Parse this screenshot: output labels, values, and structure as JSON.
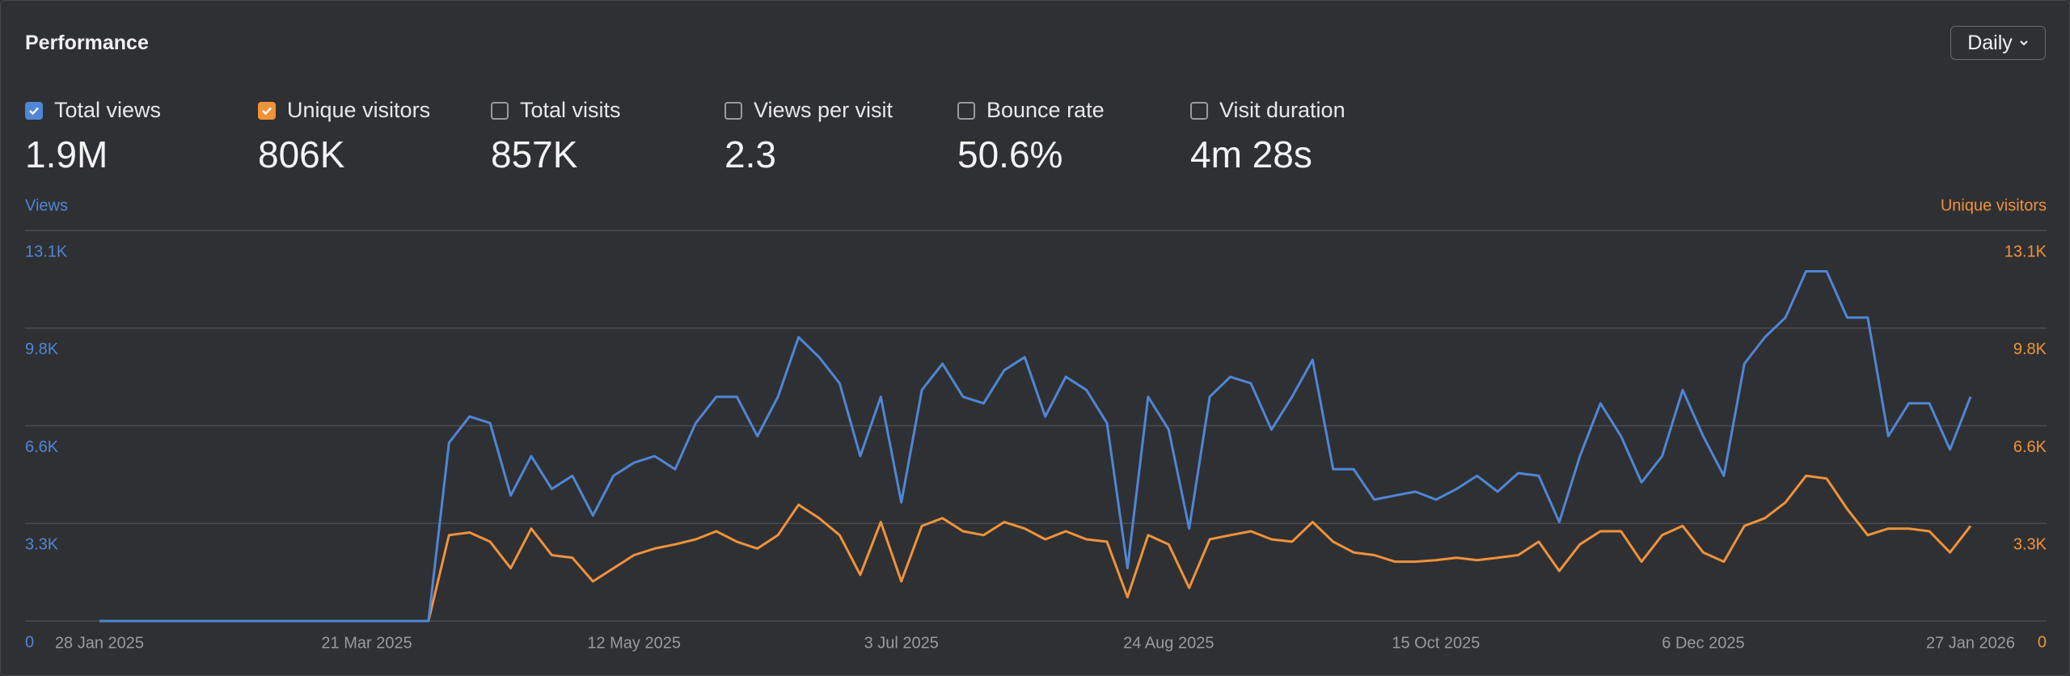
{
  "title": "Performance",
  "interval": "Daily",
  "metrics": [
    {
      "label": "Total views",
      "value": "1.9M",
      "checked": true,
      "color": "#4f86d6"
    },
    {
      "label": "Unique visitors",
      "value": "806K",
      "checked": true,
      "color": "#f0923a"
    },
    {
      "label": "Total visits",
      "value": "857K",
      "checked": false
    },
    {
      "label": "Views per visit",
      "value": "2.3",
      "checked": false
    },
    {
      "label": "Bounce rate",
      "value": "50.6%",
      "checked": false
    },
    {
      "label": "Visit duration",
      "value": "4m 28s",
      "checked": false
    }
  ],
  "chart_data": {
    "type": "line",
    "ylabel": "Views",
    "y2label": "Unique visitors",
    "x": [
      "2025-01-28",
      "2025-02-01",
      "2025-02-05",
      "2025-02-09",
      "2025-02-13",
      "2025-02-17",
      "2025-02-21",
      "2025-02-25",
      "2025-03-01",
      "2025-03-05",
      "2025-03-09",
      "2025-03-13",
      "2025-03-17",
      "2025-03-21",
      "2025-03-25",
      "2025-03-29",
      "2025-04-02",
      "2025-04-06",
      "2025-04-10",
      "2025-04-14",
      "2025-04-18",
      "2025-04-22",
      "2025-04-26",
      "2025-04-30",
      "2025-05-04",
      "2025-05-08",
      "2025-05-12",
      "2025-05-16",
      "2025-05-20",
      "2025-05-24",
      "2025-05-28",
      "2025-06-01",
      "2025-06-05",
      "2025-06-09",
      "2025-06-13",
      "2025-06-17",
      "2025-06-21",
      "2025-06-25",
      "2025-06-29",
      "2025-07-03",
      "2025-07-07",
      "2025-07-11",
      "2025-07-15",
      "2025-07-19",
      "2025-07-23",
      "2025-07-27",
      "2025-07-31",
      "2025-08-04",
      "2025-08-08",
      "2025-08-12",
      "2025-08-16",
      "2025-08-20",
      "2025-08-24",
      "2025-08-28",
      "2025-09-01",
      "2025-09-05",
      "2025-09-09",
      "2025-09-13",
      "2025-09-17",
      "2025-09-21",
      "2025-09-25",
      "2025-09-29",
      "2025-10-03",
      "2025-10-07",
      "2025-10-11",
      "2025-10-15",
      "2025-10-19",
      "2025-10-23",
      "2025-10-27",
      "2025-10-31",
      "2025-11-04",
      "2025-11-08",
      "2025-11-12",
      "2025-11-16",
      "2025-11-20",
      "2025-11-24",
      "2025-11-28",
      "2025-12-02",
      "2025-12-06",
      "2025-12-10",
      "2025-12-14",
      "2025-12-18",
      "2025-12-22",
      "2025-12-26",
      "2025-12-30",
      "2026-01-03",
      "2026-01-07",
      "2026-01-11",
      "2026-01-15",
      "2026-01-19",
      "2026-01-23",
      "2026-01-27"
    ],
    "series": [
      {
        "name": "Total views",
        "color": "#4f86d6",
        "values": [
          0,
          0,
          0,
          0,
          0,
          0,
          0,
          0,
          0,
          0,
          0,
          0,
          0,
          0,
          0,
          0,
          0,
          5980,
          6860,
          6640,
          4210,
          5530,
          4430,
          4870,
          3540,
          4870,
          5310,
          5530,
          5090,
          6640,
          7520,
          7520,
          6200,
          7520,
          9520,
          8850,
          7970,
          5530,
          7520,
          3980,
          7750,
          8630,
          7520,
          7300,
          8410,
          8850,
          6860,
          8190,
          7750,
          6640,
          1770,
          7520,
          6420,
          3100,
          7520,
          8190,
          7970,
          6420,
          7520,
          8760,
          5090,
          5090,
          4070,
          4210,
          4340,
          4070,
          4430,
          4870,
          4340,
          4960,
          4870,
          3320,
          5530,
          7300,
          6200,
          4650,
          5530,
          7750,
          6200,
          4870,
          8630,
          9520,
          10180,
          11730,
          11730,
          10180,
          10180,
          6200,
          7300,
          7300,
          5750,
          7520
        ]
      },
      {
        "name": "Unique visitors",
        "color": "#f0923a",
        "axis": "y2",
        "values": [
          0,
          0,
          0,
          0,
          0,
          0,
          0,
          0,
          0,
          0,
          0,
          0,
          0,
          0,
          0,
          0,
          0,
          2880,
          2970,
          2660,
          1770,
          3100,
          2210,
          2120,
          1330,
          1770,
          2210,
          2430,
          2570,
          2740,
          3010,
          2660,
          2430,
          2880,
          3900,
          3450,
          2880,
          1550,
          3320,
          1330,
          3190,
          3450,
          3010,
          2880,
          3320,
          3100,
          2740,
          3010,
          2740,
          2660,
          800,
          2880,
          2570,
          1110,
          2740,
          2880,
          3010,
          2740,
          2660,
          3320,
          2660,
          2300,
          2210,
          1990,
          1990,
          2040,
          2120,
          2040,
          2120,
          2210,
          2660,
          1680,
          2570,
          3010,
          3010,
          1990,
          2880,
          3190,
          2300,
          1990,
          3190,
          3450,
          3980,
          4870,
          4780,
          3760,
          2880,
          3100,
          3100,
          3010,
          2300,
          3190
        ]
      }
    ],
    "xticks": [
      {
        "value": "2025-01-28",
        "label": "28 Jan 2025"
      },
      {
        "value": "2025-03-21",
        "label": "21 Mar 2025"
      },
      {
        "value": "2025-05-12",
        "label": "12 May 2025"
      },
      {
        "value": "2025-07-03",
        "label": "3 Jul 2025"
      },
      {
        "value": "2025-08-24",
        "label": "24 Aug 2025"
      },
      {
        "value": "2025-10-15",
        "label": "15 Oct 2025"
      },
      {
        "value": "2025-12-06",
        "label": "6 Dec 2025"
      },
      {
        "value": "2026-01-27",
        "label": "27 Jan 2026"
      }
    ],
    "ylim": [
      0,
      13100
    ],
    "yticks": [
      0,
      {
        "value": 3275,
        "label": "3.3K"
      },
      {
        "value": 6550,
        "label": "6.6K"
      },
      {
        "value": 9825,
        "label": "9.8K"
      },
      {
        "value": 13100,
        "label": "13.1K"
      }
    ],
    "y2lim": [
      0,
      13100
    ],
    "y2ticks": [
      0,
      {
        "value": 3275,
        "label": "3.3K"
      },
      {
        "value": 6550,
        "label": "6.6K"
      },
      {
        "value": 9825,
        "label": "9.8K"
      },
      {
        "value": 13100,
        "label": "13.1K"
      }
    ],
    "grid": true
  }
}
